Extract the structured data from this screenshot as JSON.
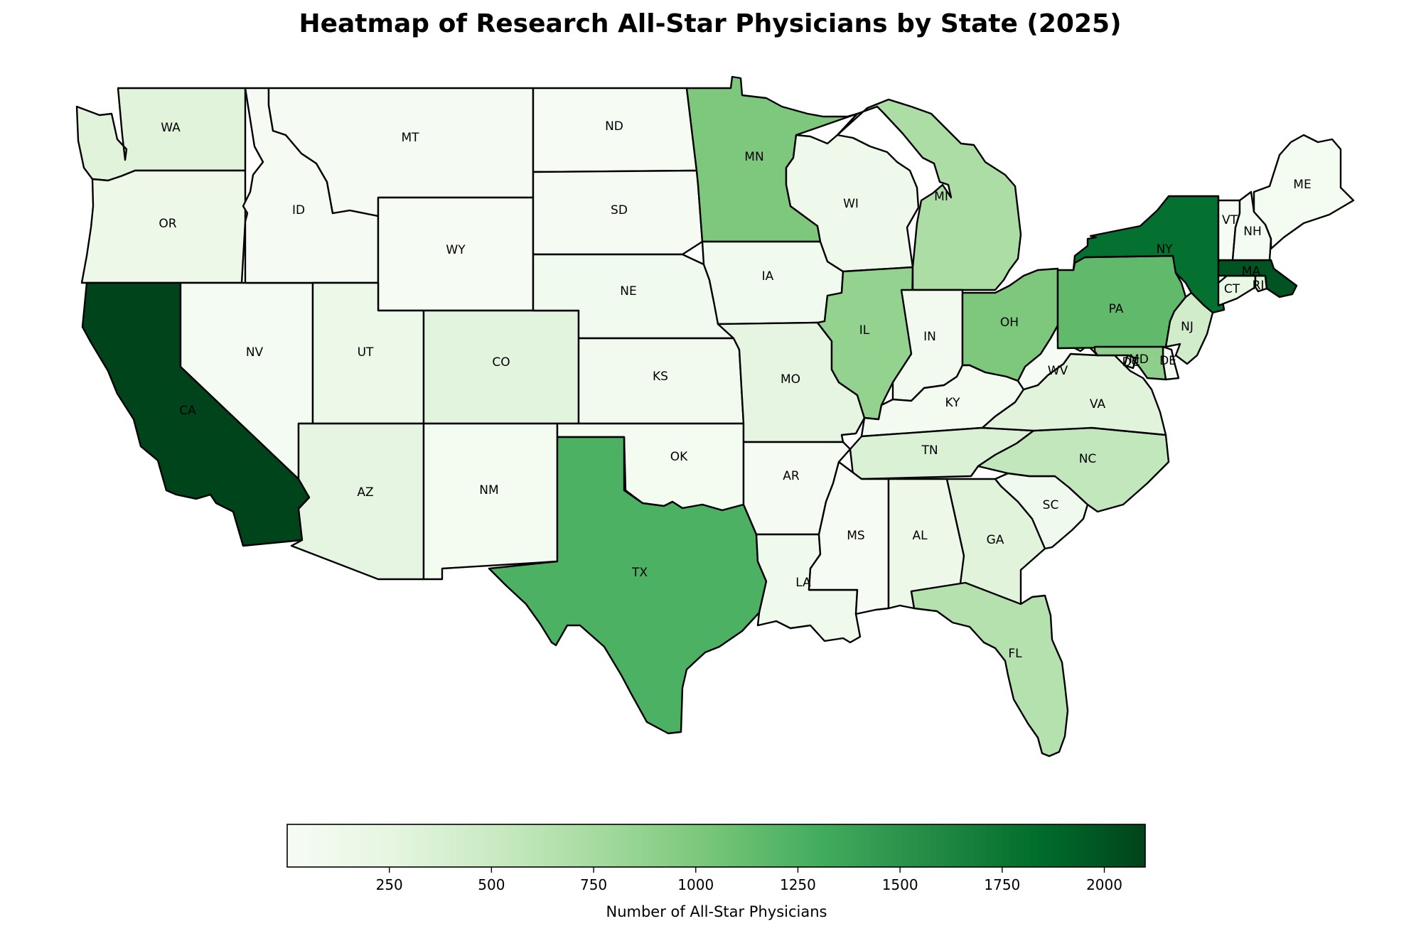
{
  "chart_data": {
    "type": "heatmap",
    "subtype": "choropleth-map",
    "title": "Heatmap of Research All-Star Physicians by State (2025)",
    "colormap": "Greens",
    "colormap_stops": [
      "#f7fcf5",
      "#e5f5e0",
      "#c7e9c0",
      "#a1d99b",
      "#74c476",
      "#41ab5d",
      "#238b45",
      "#006d2c",
      "#00441b"
    ],
    "value_range": [
      0,
      2100
    ],
    "colorbar": {
      "label": "Number of All-Star Physicians",
      "ticks": [
        250,
        500,
        750,
        1000,
        1250,
        1500,
        1750,
        2000
      ],
      "tick_labels": [
        "250",
        "500",
        "750",
        "1000",
        "1250",
        "1500",
        "1750",
        "2000"
      ],
      "orientation": "horizontal",
      "placement": "bottom"
    },
    "states": [
      {
        "code": "WA",
        "value": 300
      },
      {
        "code": "OR",
        "value": 150
      },
      {
        "code": "CA",
        "value": 2100
      },
      {
        "code": "NV",
        "value": 40
      },
      {
        "code": "ID",
        "value": 30
      },
      {
        "code": "MT",
        "value": 30
      },
      {
        "code": "WY",
        "value": 20
      },
      {
        "code": "UT",
        "value": 160
      },
      {
        "code": "AZ",
        "value": 250
      },
      {
        "code": "CO",
        "value": 280
      },
      {
        "code": "NM",
        "value": 50
      },
      {
        "code": "ND",
        "value": 20
      },
      {
        "code": "SD",
        "value": 30
      },
      {
        "code": "NE",
        "value": 90
      },
      {
        "code": "KS",
        "value": 80
      },
      {
        "code": "OK",
        "value": 50
      },
      {
        "code": "TX",
        "value": 1250
      },
      {
        "code": "MN",
        "value": 1000
      },
      {
        "code": "IA",
        "value": 90
      },
      {
        "code": "MO",
        "value": 250
      },
      {
        "code": "AR",
        "value": 30
      },
      {
        "code": "LA",
        "value": 110
      },
      {
        "code": "WI",
        "value": 130
      },
      {
        "code": "IL",
        "value": 870
      },
      {
        "code": "MI",
        "value": 720
      },
      {
        "code": "IN",
        "value": 80
      },
      {
        "code": "OH",
        "value": 1000
      },
      {
        "code": "KY",
        "value": 60
      },
      {
        "code": "TN",
        "value": 350
      },
      {
        "code": "MS",
        "value": 20
      },
      {
        "code": "AL",
        "value": 150
      },
      {
        "code": "GA",
        "value": 300
      },
      {
        "code": "FL",
        "value": 650
      },
      {
        "code": "SC",
        "value": 100
      },
      {
        "code": "NC",
        "value": 550
      },
      {
        "code": "VA",
        "value": 300
      },
      {
        "code": "WV",
        "value": 20
      },
      {
        "code": "PA",
        "value": 1150
      },
      {
        "code": "NY",
        "value": 1800
      },
      {
        "code": "NJ",
        "value": 450
      },
      {
        "code": "DE",
        "value": 40
      },
      {
        "code": "MD",
        "value": 900
      },
      {
        "code": "DC",
        "value": 300
      },
      {
        "code": "CT",
        "value": 200
      },
      {
        "code": "RI",
        "value": 300
      },
      {
        "code": "MA",
        "value": 2000
      },
      {
        "code": "VT",
        "value": 20
      },
      {
        "code": "NH",
        "value": 40
      },
      {
        "code": "ME",
        "value": 50
      }
    ]
  }
}
